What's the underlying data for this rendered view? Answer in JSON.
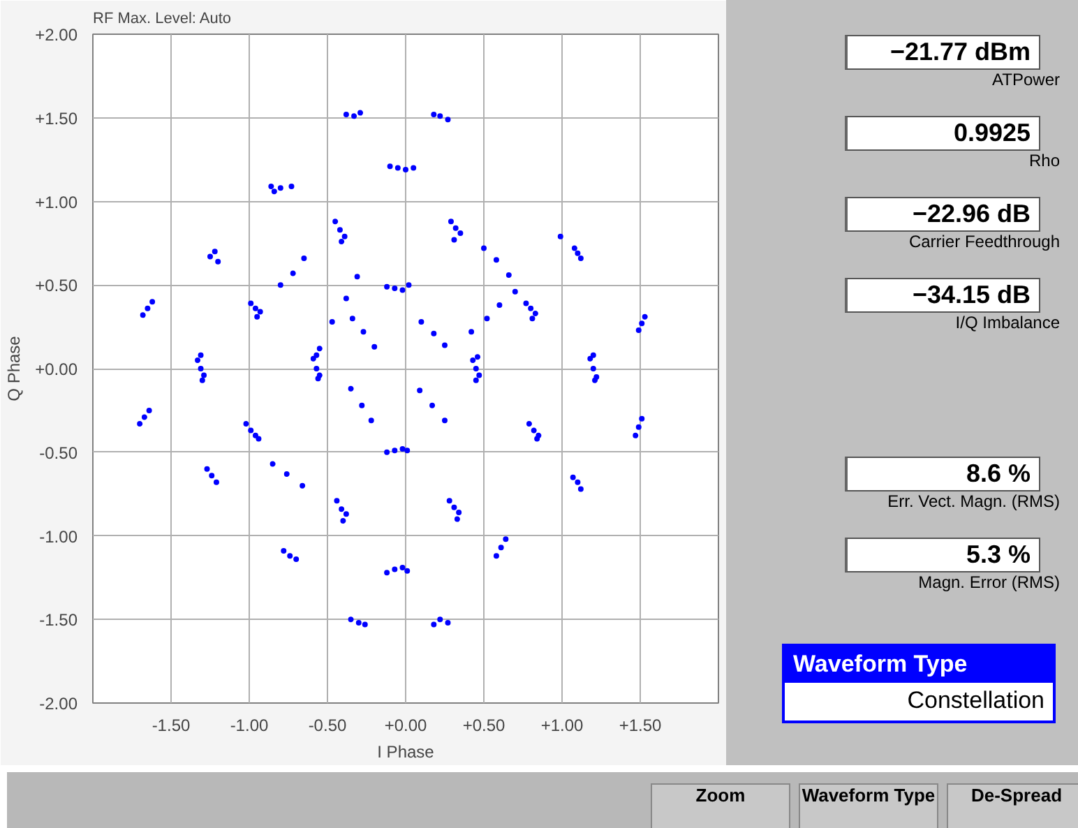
{
  "chart_data": {
    "type": "scatter",
    "title": "RF Max. Level:  Auto",
    "ylabel": "Q Phase",
    "xlabel": "I Phase",
    "xlim": [
      -2,
      2
    ],
    "ylim": [
      -2,
      2
    ],
    "xticks": [
      {
        "value": -1.5,
        "label": "-1.50"
      },
      {
        "value": -1,
        "label": "-1.00"
      },
      {
        "value": -0.5,
        "label": "-0.50"
      },
      {
        "value": 0,
        "label": "+0.00"
      },
      {
        "value": 0.5,
        "label": "+0.50"
      },
      {
        "value": 1,
        "label": "+1.00"
      },
      {
        "value": 1.5,
        "label": "+1.50"
      }
    ],
    "yticks": [
      {
        "value": -2,
        "label": "-2.00"
      },
      {
        "value": -1.5,
        "label": "-1.50"
      },
      {
        "value": -1,
        "label": "-1.00"
      },
      {
        "value": -0.5,
        "label": "-0.50"
      },
      {
        "value": 0,
        "label": "+0.00"
      },
      {
        "value": 0.5,
        "label": "+0.50"
      },
      {
        "value": 1,
        "label": "+1.00"
      },
      {
        "value": 1.5,
        "label": "+1.50"
      },
      {
        "value": 2,
        "label": "+2.00"
      }
    ],
    "grid": true,
    "marker": "circle",
    "series": [
      {
        "color": "#0000ff",
        "x": [
          -1.31,
          -1.33,
          -1.29,
          -1.31,
          -1.3,
          -0.57,
          -0.59,
          -0.55,
          -0.57,
          -0.56,
          0.45,
          0.43,
          0.47,
          0.45,
          0.46,
          1.2,
          1.18,
          1.22,
          1.2,
          1.21,
          -0.07,
          -0.12,
          -0.02,
          0.02,
          -0.07,
          -0.12,
          -0.02,
          0.01,
          -0.05,
          -0.1,
          0.0,
          0.05,
          -0.07,
          -0.12,
          -0.02,
          0.01,
          -0.96,
          -0.99,
          -0.93,
          -0.95,
          -0.99,
          -1.02,
          -0.96,
          -0.94,
          -0.42,
          -0.45,
          -0.39,
          -0.41,
          -0.41,
          -0.44,
          -0.38,
          -0.4,
          0.32,
          0.29,
          0.35,
          0.31,
          0.31,
          0.28,
          0.34,
          0.33,
          0.8,
          0.77,
          0.83,
          0.81,
          0.82,
          0.79,
          0.85,
          0.84,
          -0.38,
          -0.33,
          -0.29,
          0.18,
          0.22,
          0.27,
          -0.86,
          -0.8,
          -0.84,
          -0.73,
          -1.25,
          -1.22,
          -1.2,
          1.1,
          1.12,
          1.08,
          -1.65,
          -1.62,
          -1.68,
          1.51,
          1.49,
          1.53,
          -1.67,
          -1.64,
          -1.7,
          1.49,
          1.51,
          1.47,
          -1.24,
          -1.21,
          -1.27,
          1.1,
          1.12,
          1.07,
          -0.78,
          -0.74,
          -0.7,
          0.61,
          0.64,
          0.58,
          -0.35,
          -0.3,
          -0.26,
          0.22,
          0.18,
          0.27,
          -0.55,
          -0.47,
          -0.38,
          -0.31,
          -0.8,
          -0.72,
          -0.65,
          0.5,
          0.58,
          0.66,
          0.42,
          0.52,
          0.6,
          0.7,
          -0.85,
          -0.76,
          -0.66,
          -0.34,
          -0.27,
          -0.2,
          0.1,
          0.18,
          0.25,
          -0.35,
          -0.28,
          -0.22,
          0.09,
          0.17,
          0.25,
          0.99
        ],
        "values": [
          0.0,
          0.05,
          -0.04,
          0.08,
          -0.07,
          0.0,
          0.06,
          -0.04,
          0.08,
          -0.06,
          0.0,
          0.05,
          -0.04,
          -0.07,
          0.07,
          0.0,
          0.06,
          -0.05,
          0.08,
          -0.07,
          0.48,
          0.49,
          0.47,
          0.5,
          -0.49,
          -0.5,
          -0.48,
          -0.49,
          1.2,
          1.21,
          1.19,
          1.2,
          -1.2,
          -1.22,
          -1.19,
          -1.21,
          0.36,
          0.39,
          0.34,
          0.31,
          -0.37,
          -0.33,
          -0.4,
          -0.42,
          0.83,
          0.88,
          0.79,
          0.76,
          -0.84,
          -0.79,
          -0.87,
          -0.91,
          0.84,
          0.88,
          0.81,
          0.77,
          -0.83,
          -0.79,
          -0.86,
          -0.9,
          0.36,
          0.39,
          0.33,
          0.3,
          -0.37,
          -0.33,
          -0.4,
          -0.42,
          1.52,
          1.51,
          1.53,
          1.52,
          1.51,
          1.49,
          1.09,
          1.08,
          1.06,
          1.09,
          0.67,
          0.7,
          0.64,
          0.69,
          0.66,
          0.72,
          0.36,
          0.4,
          0.32,
          0.27,
          0.23,
          0.31,
          -0.29,
          -0.25,
          -0.33,
          -0.35,
          -0.3,
          -0.4,
          -0.64,
          -0.68,
          -0.6,
          -0.68,
          -0.72,
          -0.65,
          -1.09,
          -1.12,
          -1.14,
          -1.07,
          -1.02,
          -1.12,
          -1.5,
          -1.52,
          -1.53,
          -1.5,
          -1.53,
          -1.52,
          0.12,
          0.28,
          0.42,
          0.55,
          0.5,
          0.57,
          0.66,
          0.72,
          0.65,
          0.56,
          0.22,
          0.3,
          0.38,
          0.46,
          -0.57,
          -0.63,
          -0.7,
          0.3,
          0.22,
          0.13,
          0.28,
          0.21,
          0.14,
          -0.12,
          -0.22,
          -0.31,
          -0.13,
          -0.22,
          -0.31,
          0.79
        ]
      }
    ],
    "annotations": [
      "−21.77 dBm",
      "ATPower",
      "0.9925",
      "Rho",
      "−22.96 dB",
      "Carrier Feedthrough",
      "−34.15 dB",
      "I/Q Imbalance",
      "8.6 %",
      "Err. Vect. Magn. (RMS)",
      "5.3 %",
      "Magn. Error (RMS)",
      "Waveform Type",
      "Constellation",
      "Zoom",
      "Waveform Type",
      "De-Spread"
    ]
  }
}
